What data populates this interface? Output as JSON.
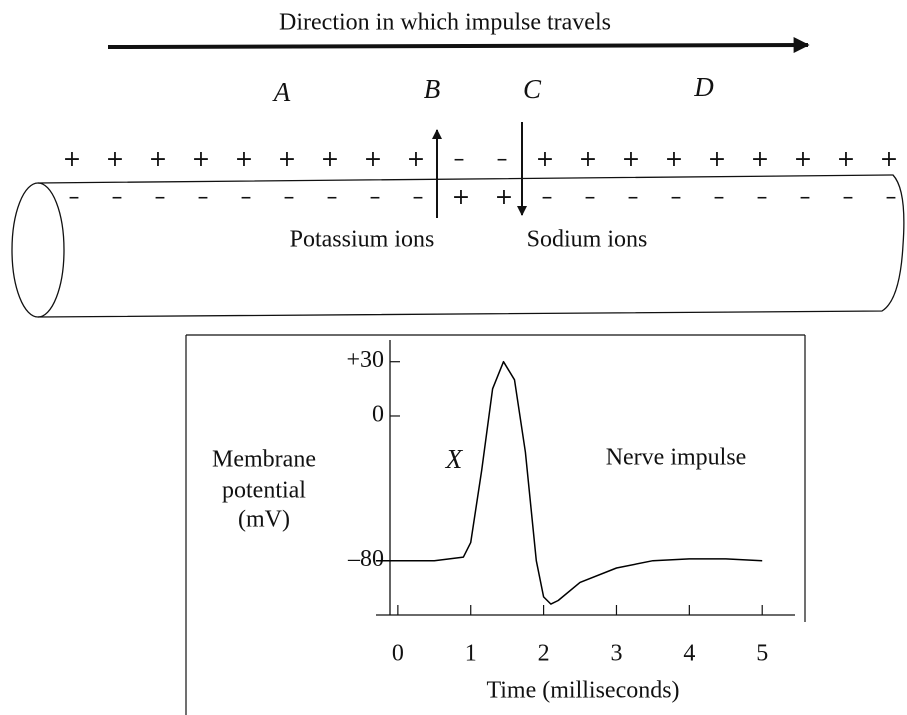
{
  "header": {
    "title": "Direction in which impulse travels"
  },
  "regions": [
    "A",
    "B",
    "C",
    "D"
  ],
  "ions": {
    "potassium": "Potassium ions",
    "sodium": "Sodium ions"
  },
  "membrane": {
    "outside": [
      "+",
      "+",
      "+",
      "+",
      "+",
      "+",
      "+",
      "+",
      "+",
      "–",
      "–",
      "+",
      "+",
      "+",
      "+",
      "+",
      "+",
      "+",
      "+",
      "+"
    ],
    "inside": [
      "–",
      "–",
      "–",
      "–",
      "–",
      "–",
      "–",
      "–",
      "–",
      "+",
      "+",
      "–",
      "–",
      "–",
      "–",
      "–",
      "–",
      "–",
      "–",
      "–"
    ]
  },
  "chart_data": {
    "type": "line",
    "ylabel": [
      "Membrane",
      "potential",
      "(mV)"
    ],
    "xlabel": "Time (milliseconds)",
    "annotations": [
      "X",
      "Nerve impulse"
    ],
    "x": [
      -0.3,
      0.5,
      0.9,
      1.0,
      1.15,
      1.3,
      1.45,
      1.6,
      1.75,
      1.9,
      2.0,
      2.1,
      2.2,
      2.5,
      3.0,
      3.5,
      4.0,
      4.5,
      5.0
    ],
    "values": [
      -80,
      -80,
      -78,
      -70,
      -30,
      15,
      30,
      20,
      -20,
      -80,
      -100,
      -104,
      -102,
      -92,
      -84,
      -80,
      -79,
      -79,
      -80
    ],
    "color": "#000000",
    "xlim": [
      -0.3,
      5.45
    ],
    "xticks": [
      0,
      1,
      2,
      3,
      4,
      5
    ],
    "ylim": [
      -110,
      42
    ],
    "yticks": [
      {
        "value": 30,
        "label": "+30"
      },
      0,
      {
        "value": -80,
        "label": "–80"
      }
    ]
  }
}
